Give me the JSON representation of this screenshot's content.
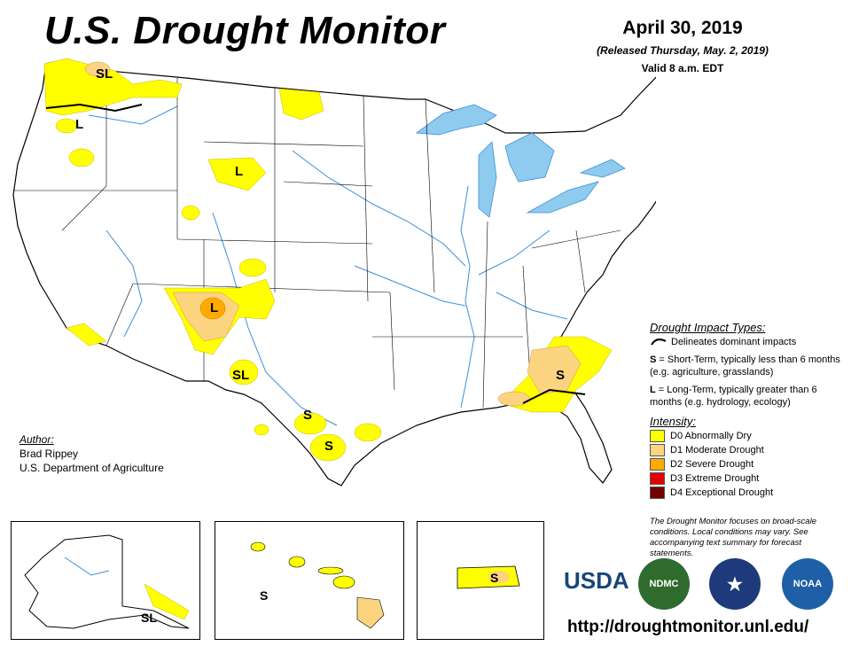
{
  "header": {
    "title": "U.S. Drought Monitor",
    "date": "April 30, 2019",
    "released": "(Released Thursday, May. 2, 2019)",
    "valid": "Valid 8 a.m. EDT"
  },
  "author": {
    "heading": "Author:",
    "name": "Brad Rippey",
    "org": "U.S. Department of Agriculture"
  },
  "impact_types": {
    "heading": "Drought Impact Types:",
    "delineates": "Delineates dominant impacts",
    "s_key": "S",
    "s_text": " = Short-Term, typically less than 6 months (e.g. agriculture, grasslands)",
    "l_key": "L",
    "l_text": " = Long-Term, typically greater than 6 months (e.g. hydrology, ecology)"
  },
  "intensity": {
    "heading": "Intensity:",
    "levels": [
      {
        "label": "D0 Abnormally Dry",
        "color": "#ffff00"
      },
      {
        "label": "D1 Moderate Drought",
        "color": "#fcd37f"
      },
      {
        "label": "D2 Severe Drought",
        "color": "#ffaa00"
      },
      {
        "label": "D3 Extreme Drought",
        "color": "#e60000"
      },
      {
        "label": "D4 Exceptional Drought",
        "color": "#730000"
      }
    ]
  },
  "note": "The Drought Monitor focuses on broad-scale conditions. Local conditions may vary. See accompanying text summary for forecast statements.",
  "url": "http://droughtmonitor.unl.edu/",
  "map_labels": {
    "sl_wa": "SL",
    "l_or": "L",
    "l_wy": "L",
    "l_sw": "L",
    "sl_nm": "SL",
    "s_tx1": "S",
    "s_tx2": "S",
    "s_se": "S",
    "sl_ak": "SL",
    "s_hi": "S",
    "s_pr": "S"
  },
  "logos": {
    "usda": "USDA",
    "ndmc": "NDMC",
    "noaa": "NOAA"
  },
  "colors": {
    "water": "#8ecbef",
    "river": "#3d8fd6"
  }
}
